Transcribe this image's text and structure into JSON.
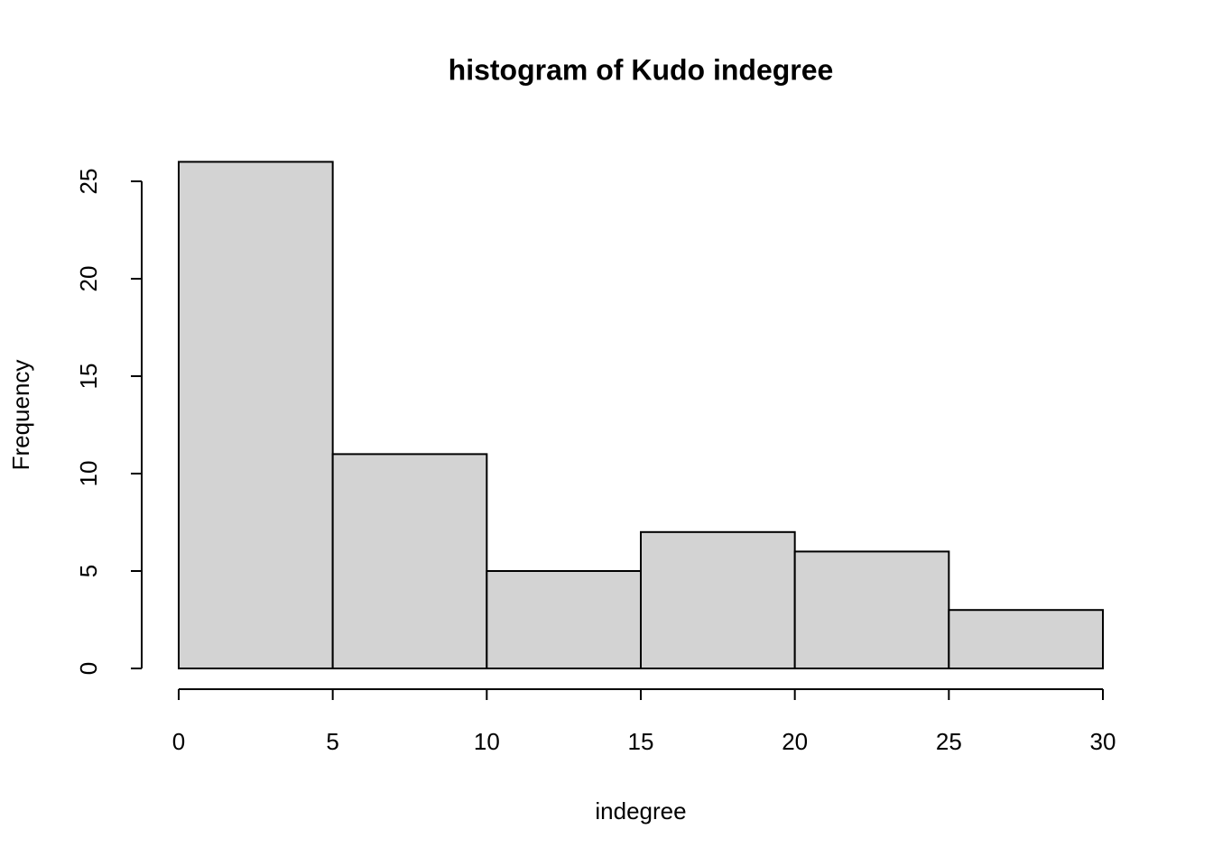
{
  "chart_data": {
    "type": "histogram",
    "title": "histogram of Kudo indegree",
    "x_label": "indegree",
    "y_label": "Frequency",
    "bins": [
      0,
      5,
      10,
      15,
      20,
      25,
      30
    ],
    "values": [
      26,
      11,
      5,
      7,
      6,
      3
    ],
    "color": "#d3d3d3",
    "xlim": [
      0,
      30
    ],
    "ylim": [
      0,
      26
    ],
    "xticks": [
      0,
      5,
      10,
      15,
      20,
      25,
      30
    ],
    "yticks": [
      0,
      5,
      10,
      15,
      20,
      25
    ]
  }
}
